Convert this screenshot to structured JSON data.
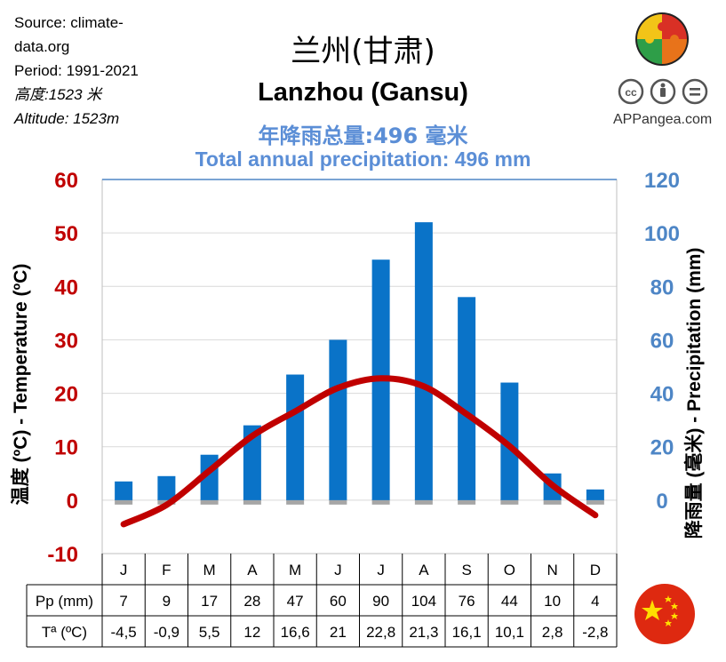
{
  "meta": {
    "source": "Source: climate-",
    "source2": "data.org",
    "period": "Period: 1991-2021",
    "altitude_cn": "高度:1523 米",
    "altitude_en": "Altitude: 1523m"
  },
  "title_cn": "兰州(甘肃)",
  "title_en": "Lanzhou (Gansu)",
  "total_cn": "年降雨总量:496 毫米",
  "total_en": "Total annual precipitation: 496 mm",
  "brand": "APPangea.com",
  "colors": {
    "temp": "#c00000",
    "precip_bar": "#0a73c8",
    "precip_axis": "#4e86c6",
    "title_blue": "#5b8ed6"
  },
  "chart_data": {
    "type": "bar",
    "categories": [
      "J",
      "F",
      "M",
      "A",
      "M",
      "J",
      "J",
      "A",
      "S",
      "O",
      "N",
      "D"
    ],
    "series": [
      {
        "name": "Pp (mm)",
        "type": "bar",
        "axis": "right",
        "values": [
          7,
          9,
          17,
          28,
          47,
          60,
          90,
          104,
          76,
          44,
          10,
          4
        ]
      },
      {
        "name": "Tª (ºC)",
        "type": "line",
        "axis": "left",
        "values": [
          -4.5,
          -0.9,
          5.5,
          12,
          16.6,
          21,
          22.8,
          21.3,
          16.1,
          10.1,
          2.8,
          -2.8
        ]
      }
    ],
    "table_precip_labels": [
      "7",
      "9",
      "17",
      "28",
      "47",
      "60",
      "90",
      "104",
      "76",
      "44",
      "10",
      "4"
    ],
    "table_temp_labels": [
      "-4,5",
      "-0,9",
      "5,5",
      "12",
      "16,6",
      "21",
      "22,8",
      "21,3",
      "16,1",
      "10,1",
      "2,8",
      "-2,8"
    ],
    "left_axis": {
      "label": "温度 (ºC) - Temperature  (ºC)",
      "ylim": [
        -10,
        60
      ],
      "ticks": [
        "-10",
        "0",
        "10",
        "20",
        "30",
        "40",
        "50",
        "60"
      ]
    },
    "right_axis": {
      "label": "降雨量 (毫米) - Precipitation  (mm)",
      "ylim": [
        -20,
        120
      ],
      "ticks": [
        "0",
        "20",
        "40",
        "60",
        "80",
        "100",
        "120"
      ]
    },
    "row_labels": {
      "precip": "Pp (mm)",
      "temp": "Tª (ºC)"
    },
    "grid": true
  }
}
